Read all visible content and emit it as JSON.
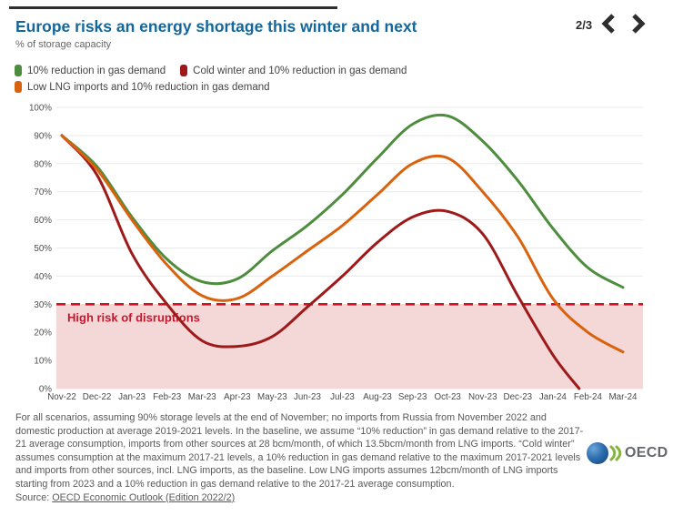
{
  "header": {
    "title": "Europe risks an energy shortage this winter and next",
    "subtitle": "% of storage capacity",
    "pager": {
      "label": "2/3"
    }
  },
  "chart_data": {
    "type": "line",
    "title": "Europe risks an energy shortage this winter and next",
    "ylabel": "% of storage capacity",
    "ylim": [
      0,
      100
    ],
    "grid": true,
    "legend_position": "top",
    "categories": [
      "Nov-22",
      "Dec-22",
      "Jan-23",
      "Feb-23",
      "Mar-23",
      "Apr-23",
      "May-23",
      "Jun-23",
      "Jul-23",
      "Aug-23",
      "Sep-23",
      "Oct-23",
      "Nov-23",
      "Dec-23",
      "Jan-24",
      "Feb-24",
      "Mar-24"
    ],
    "y_ticks": [
      {
        "value": 0,
        "label": "0%"
      },
      {
        "value": 10,
        "label": "10%"
      },
      {
        "value": 20,
        "label": "20%"
      },
      {
        "value": 30,
        "label": "30%"
      },
      {
        "value": 40,
        "label": "40%"
      },
      {
        "value": 50,
        "label": "50%"
      },
      {
        "value": 60,
        "label": "60%"
      },
      {
        "value": 70,
        "label": "70%"
      },
      {
        "value": 80,
        "label": "80%"
      },
      {
        "value": 90,
        "label": "90%"
      },
      {
        "value": 100,
        "label": "100%"
      }
    ],
    "series": [
      {
        "name": "10% reduction in gas demand",
        "color": "#4e8d3e",
        "values": [
          90,
          79,
          61,
          46,
          38,
          39,
          49,
          58,
          69,
          82,
          94,
          97,
          88,
          74,
          57,
          43,
          36
        ]
      },
      {
        "name": "Cold winter and 10% reduction in gas demand",
        "color": "#9e1a1a",
        "values": [
          90,
          76,
          48,
          30,
          17,
          15,
          18.5,
          29,
          40,
          52,
          61,
          63,
          55,
          33,
          12
        ],
        "end_point": {
          "x_index": 14.75,
          "value": 0
        }
      },
      {
        "name": "Low LNG imports and 10% reduction in gas demand",
        "color": "#d9620f",
        "values": [
          90,
          78,
          60,
          44,
          33,
          32,
          40,
          49,
          58,
          69,
          80,
          82,
          70,
          54,
          32,
          20,
          13
        ]
      }
    ],
    "threshold": {
      "value": 30,
      "label": "High risk of disruptions",
      "line_color": "#cf1322",
      "fill_color": "#f4d7d7",
      "label_color": "#c11a2e"
    }
  },
  "footnote": {
    "text": "For all scenarios, assuming 90% storage levels at the end of November; no imports from Russia from November 2022 and domestic production at average 2019-2021 levels. In the baseline, we assume “10% reduction” in gas demand relative to the 2017-21 average consumption, imports from other sources at 28 bcm/month, of which 13.5bcm/month from LNG imports. “Cold winter” assumes consumption at the maximum 2017-21 levels, a 10% reduction in gas demand relative to the maximum 2017-2021 levels and imports from other sources, incl. LNG imports, as the baseline. Low LNG imports assumes 12bcm/month of LNG imports starting from 2023 and a 10% reduction in gas demand relative to the 2017-21 average consumption.",
    "source_prefix": "Source: ",
    "source_link": "OECD Economic Outlook (Edition 2022/2)"
  },
  "logo": {
    "text": "OECD"
  }
}
